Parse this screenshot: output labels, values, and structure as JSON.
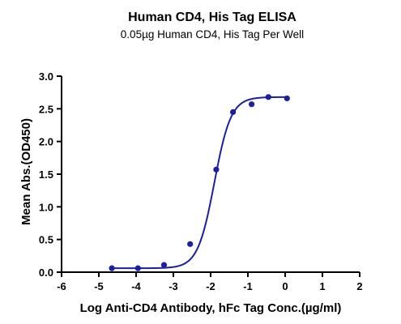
{
  "chart_data": {
    "type": "scatter",
    "title": "Human CD4, His Tag ELISA",
    "subtitle": "0.05µg Human CD4, His Tag Per Well",
    "xlabel": "Log Anti-CD4 Antibody, hFc Tag Conc.(µg/ml)",
    "ylabel": "Mean Abs.(OD450)",
    "xlim": [
      -6,
      2
    ],
    "ylim": [
      0.0,
      3.0
    ],
    "xticks": [
      -6,
      -5,
      -4,
      -3,
      -2,
      -1,
      0,
      1,
      2
    ],
    "yticks": [
      "0.0",
      "0.5",
      "1.0",
      "1.5",
      "2.0",
      "2.5",
      "3.0"
    ],
    "grid": false,
    "colors": {
      "series": "#1c1fa0",
      "axis": "#000000"
    },
    "series": [
      {
        "points": [
          {
            "x": -4.65,
            "y": 0.06
          },
          {
            "x": -3.95,
            "y": 0.06
          },
          {
            "x": -3.25,
            "y": 0.11
          },
          {
            "x": -2.55,
            "y": 0.43
          },
          {
            "x": -1.85,
            "y": 1.57
          },
          {
            "x": -1.4,
            "y": 2.45
          },
          {
            "x": -0.9,
            "y": 2.57
          },
          {
            "x": -0.45,
            "y": 2.68
          },
          {
            "x": 0.05,
            "y": 2.66
          }
        ],
        "fit": {
          "bottom": 0.06,
          "top": 2.68,
          "logEC50": -1.9,
          "hill": 1.95
        }
      }
    ]
  }
}
